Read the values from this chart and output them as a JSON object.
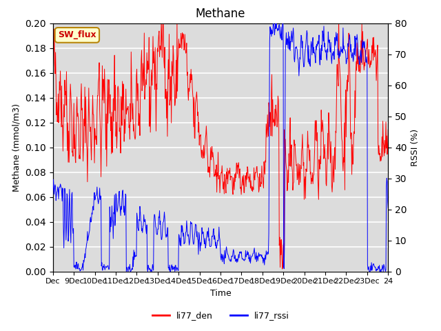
{
  "title": "Methane",
  "ylabel_left": "Methane (mmol/m3)",
  "ylabel_right": "RSSI (%)",
  "xlabel": "Time",
  "ylim_left": [
    0.0,
    0.2
  ],
  "ylim_right": [
    0,
    80
  ],
  "yticks_left": [
    0.0,
    0.02,
    0.04,
    0.06,
    0.08,
    0.1,
    0.12,
    0.14,
    0.16,
    0.18,
    0.2
  ],
  "yticks_right": [
    0,
    10,
    20,
    30,
    40,
    50,
    60,
    70,
    80
  ],
  "xtick_labels": [
    "Dec",
    "9Dec",
    "10Dec",
    "11Dec",
    "12Dec",
    "13Dec",
    "14Dec",
    "15Dec",
    "16Dec",
    "17Dec",
    "18Dec",
    "19Dec",
    "20Dec",
    "21Dec",
    "22Dec",
    "23Dec",
    "24"
  ],
  "color_red": "#ff0000",
  "color_blue": "#0000ff",
  "legend_label_red": "li77_den",
  "legend_label_blue": "li77_rssi",
  "sw_flux_label": "SW_flux",
  "bg_color": "#dcdcdc",
  "grid_color": "#ffffff",
  "title_fontsize": 12,
  "axis_fontsize": 9,
  "tick_fontsize": 8
}
